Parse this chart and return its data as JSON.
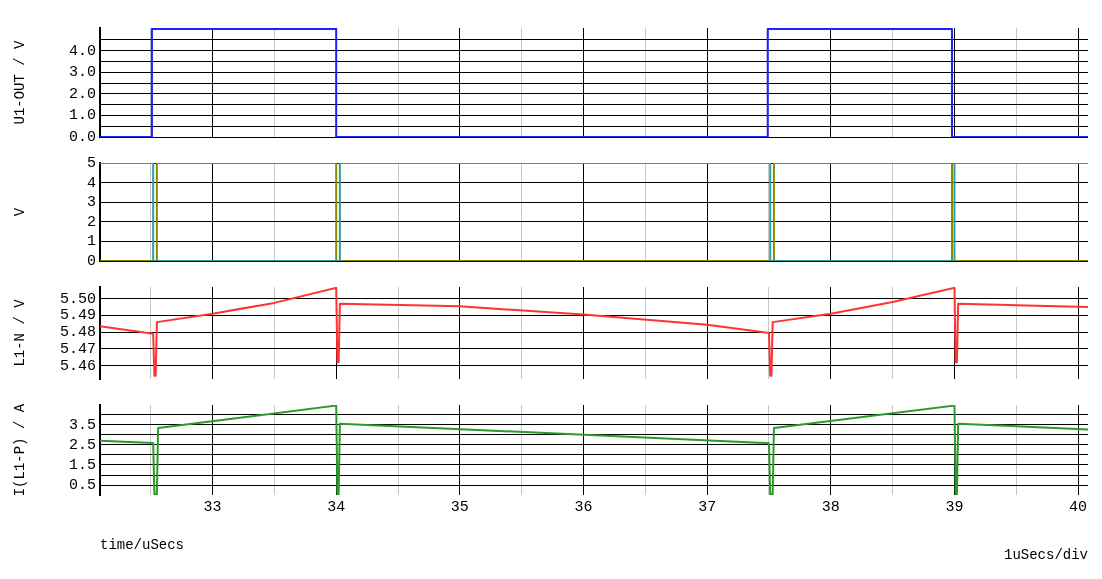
{
  "chart_data": [
    {
      "type": "line",
      "ylabel": "U1-OUT / V",
      "xlim": [
        32.09,
        40.08
      ],
      "xticks": [
        {
          "value": 32.5,
          "label": null
        },
        33,
        {
          "value": 33.5,
          "label": null
        },
        34,
        {
          "value": 34.5,
          "label": null
        },
        35,
        {
          "value": 35.5,
          "label": null
        },
        36,
        {
          "value": 36.5,
          "label": null
        },
        37,
        {
          "value": 37.5,
          "label": null
        },
        38,
        {
          "value": 38.5,
          "label": null
        },
        39,
        {
          "value": 39.5,
          "label": null
        },
        40
      ],
      "ylim": [
        0,
        5.05
      ],
      "yticks": [
        {
          "value": 0,
          "label": "0.0"
        },
        {
          "value": 0.5,
          "label": null
        },
        {
          "value": 1,
          "label": "1.0"
        },
        {
          "value": 1.5,
          "label": null
        },
        {
          "value": 2,
          "label": "2.0"
        },
        {
          "value": 2.5,
          "label": null
        },
        {
          "value": 3,
          "label": "3.0"
        },
        {
          "value": 3.5,
          "label": null
        },
        {
          "value": 4,
          "label": "4.0"
        },
        {
          "value": 4.5,
          "label": null
        }
      ],
      "grid": true,
      "legend": false,
      "tick_labels": "y",
      "series": [
        {
          "color": "#1f1fff",
          "x": [
            32.09,
            32.51,
            32.51,
            34.0,
            34.0,
            37.49,
            37.49,
            38.98,
            38.98,
            40.08
          ],
          "values": [
            0,
            0,
            5,
            5,
            0,
            0,
            5,
            5,
            0,
            0
          ]
        }
      ]
    },
    {
      "type": "line",
      "ylabel": "V",
      "xlim": [
        32.09,
        40.08
      ],
      "xticks": [
        {
          "value": 32.5,
          "label": null
        },
        33,
        {
          "value": 33.5,
          "label": null
        },
        34,
        {
          "value": 34.5,
          "label": null
        },
        35,
        {
          "value": 35.5,
          "label": null
        },
        36,
        {
          "value": 36.5,
          "label": null
        },
        37,
        {
          "value": 37.5,
          "label": null
        },
        38,
        {
          "value": 38.5,
          "label": null
        },
        39,
        {
          "value": 39.5,
          "label": null
        },
        40
      ],
      "ylim": [
        0,
        5
      ],
      "yticks": [
        0,
        1,
        2,
        3,
        4,
        5
      ],
      "grid": true,
      "legend": false,
      "tick_labels": "y",
      "series": [
        {
          "color": "#2f9f9f",
          "x": [
            32.09,
            32.52,
            32.52,
            34.03,
            34.03,
            37.51,
            37.51,
            39.0,
            39.0,
            40.08
          ],
          "values": [
            5,
            5,
            0,
            0,
            5,
            5,
            0,
            0,
            5,
            5
          ]
        },
        {
          "color": "#8b8b00",
          "x": [
            32.09,
            32.55,
            32.55,
            34.0,
            34.0,
            37.54,
            37.54,
            38.98,
            38.98,
            40.08
          ],
          "values": [
            0,
            0,
            5,
            5,
            0,
            0,
            5,
            5,
            0,
            0
          ]
        }
      ]
    },
    {
      "type": "line",
      "ylabel": "L1-N / V",
      "xlim": [
        32.09,
        40.08
      ],
      "xticks": [
        {
          "value": 32.5,
          "label": null
        },
        33,
        {
          "value": 33.5,
          "label": null
        },
        34,
        {
          "value": 34.5,
          "label": null
        },
        35,
        {
          "value": 35.5,
          "label": null
        },
        36,
        {
          "value": 36.5,
          "label": null
        },
        37,
        {
          "value": 37.5,
          "label": null
        },
        38,
        {
          "value": 38.5,
          "label": null
        },
        39,
        {
          "value": 39.5,
          "label": null
        },
        40
      ],
      "ylim": [
        5.452,
        5.507
      ],
      "yticks": [
        {
          "value": 5.46,
          "label": "5.46"
        },
        {
          "value": 5.47,
          "label": "5.47"
        },
        {
          "value": 5.48,
          "label": "5.48"
        },
        {
          "value": 5.49,
          "label": "5.49"
        },
        {
          "value": 5.5,
          "label": "5.50"
        }
      ],
      "grid": true,
      "legend": false,
      "tick_labels": "y",
      "series": [
        {
          "color": "#ff3333",
          "x": [
            32.09,
            32.52,
            32.53,
            32.54,
            32.55,
            33.0,
            33.5,
            34.0,
            34.01,
            34.02,
            34.03,
            35.0,
            36.0,
            37.0,
            37.5,
            37.51,
            37.52,
            37.53,
            38.0,
            38.5,
            39.0,
            39.01,
            39.02,
            39.03,
            40.08
          ],
          "values": [
            5.4835,
            5.479,
            5.454,
            5.454,
            5.486,
            5.491,
            5.4975,
            5.5065,
            5.462,
            5.462,
            5.497,
            5.4955,
            5.4905,
            5.4845,
            5.4795,
            5.454,
            5.454,
            5.486,
            5.491,
            5.498,
            5.5065,
            5.462,
            5.462,
            5.497,
            5.495
          ]
        }
      ]
    },
    {
      "type": "line",
      "ylabel": "I(L1-P) / A",
      "xlabel": "time/uSecs",
      "annotations": [
        "1uSecs/div"
      ],
      "xlim": [
        32.09,
        40.08
      ],
      "xticks": [
        {
          "value": 32.5,
          "label": null
        },
        33,
        {
          "value": 33.5,
          "label": null
        },
        34,
        {
          "value": 34.5,
          "label": null
        },
        35,
        {
          "value": 35.5,
          "label": null
        },
        36,
        {
          "value": 36.5,
          "label": null
        },
        37,
        {
          "value": 37.5,
          "label": null
        },
        38,
        {
          "value": 38.5,
          "label": null
        },
        39,
        {
          "value": 39.5,
          "label": null
        },
        40
      ],
      "ylim": [
        0.0,
        4.47
      ],
      "yticks": [
        0.5,
        {
          "value": 1,
          "label": null
        },
        1.5,
        {
          "value": 2,
          "label": null
        },
        2.5,
        {
          "value": 3,
          "label": null
        },
        3.5,
        {
          "value": 4,
          "label": null
        }
      ],
      "grid": true,
      "legend": false,
      "series": [
        {
          "color": "#2a9a2a",
          "x": [
            32.09,
            32.52,
            32.53,
            32.55,
            32.56,
            34.0,
            34.01,
            34.02,
            34.03,
            37.5,
            37.51,
            37.53,
            37.54,
            39.0,
            39.01,
            39.02,
            39.03,
            40.08
          ],
          "values": [
            2.7,
            2.59,
            0.05,
            0.05,
            3.33,
            4.44,
            0.05,
            0.05,
            3.54,
            2.58,
            0.05,
            0.05,
            3.33,
            4.44,
            0.05,
            0.05,
            3.54,
            3.26
          ]
        }
      ]
    }
  ]
}
